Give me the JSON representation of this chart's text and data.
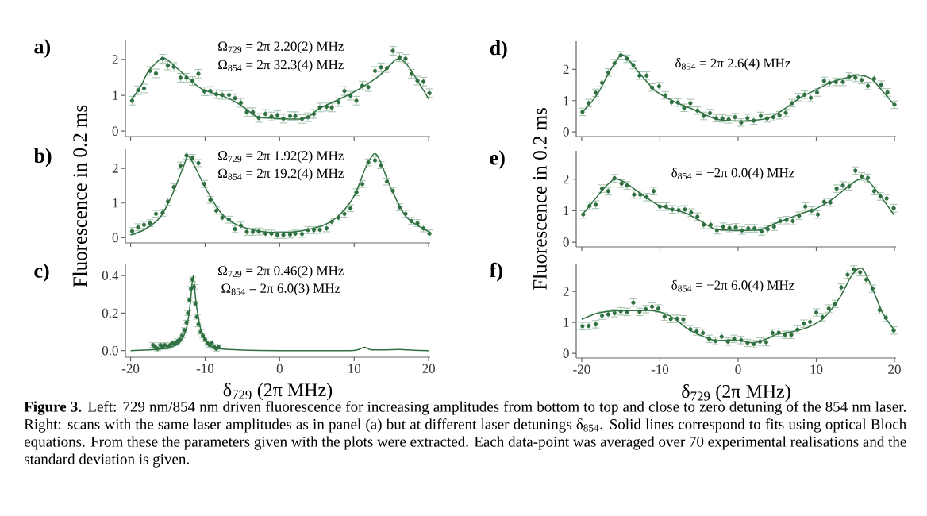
{
  "chart_data": [
    {
      "type": "scatter",
      "title": "a)",
      "annotations": [
        "Ω$_{729}$ = 2π 2.20(2) MHz",
        "Ω$_{854}$ = 2π 32.3(4) MHz"
      ],
      "xlim": [
        -20.7,
        20.2
      ],
      "xticks": [
        -20,
        -10,
        0,
        10,
        20
      ],
      "ylim": [
        -0.15,
        2.55
      ],
      "yticks": [
        0,
        1,
        2
      ],
      "tick_labels": "y",
      "marker": "circle",
      "series": [
        {
          "type": "scatter",
          "color": "#2e7040",
          "x": [
            -19.8,
            -19,
            -18.2,
            -17.4,
            -16.6,
            -15.7,
            -15,
            -14.2,
            -13.3,
            -12.5,
            -11.7,
            -10.9,
            -10.1,
            -9.3,
            -8.5,
            -7.7,
            -6.8,
            -6,
            -5.2,
            -4.4,
            -3.6,
            -2.8,
            -1.9,
            -1.1,
            -0.3,
            0.5,
            1.4,
            2.1,
            3,
            3.8,
            4.6,
            5.4,
            6.3,
            7,
            7.9,
            8.7,
            9.5,
            10.3,
            11.1,
            11.9,
            12.8,
            13.6,
            14.4,
            15.2,
            16.1,
            16.9,
            17.7,
            18.5,
            19.3,
            20.1
          ],
          "values": [
            0.85,
            1.14,
            1.19,
            1.68,
            1.61,
            2.02,
            1.83,
            1.79,
            1.49,
            1.49,
            1.4,
            1.6,
            1.11,
            1.12,
            1.03,
            1.01,
            1.01,
            0.92,
            0.79,
            0.53,
            0.53,
            0.37,
            0.48,
            0.41,
            0.45,
            0.35,
            0.42,
            0.42,
            0.34,
            0.39,
            0.48,
            0.66,
            0.68,
            0.66,
            0.81,
            1.12,
            0.99,
            0.85,
            1.27,
            1.23,
            1.68,
            1.78,
            1.76,
            2.24,
            2.06,
            2.02,
            1.6,
            1.41,
            1.38,
            1.06
          ],
          "errors": [
            0.12,
            0.12,
            0.12,
            0.12,
            0.12,
            0.12,
            0.12,
            0.12,
            0.12,
            0.12,
            0.12,
            0.12,
            0.12,
            0.12,
            0.12,
            0.12,
            0.12,
            0.12,
            0.12,
            0.12,
            0.12,
            0.12,
            0.12,
            0.12,
            0.12,
            0.12,
            0.12,
            0.12,
            0.12,
            0.12,
            0.12,
            0.12,
            0.12,
            0.12,
            0.12,
            0.12,
            0.12,
            0.12,
            0.12,
            0.12,
            0.12,
            0.12,
            0.12,
            0.12,
            0.12,
            0.12,
            0.12,
            0.12,
            0.12,
            0.12
          ]
        },
        {
          "type": "line",
          "marker": "none",
          "color": "#2e7040",
          "x": [
            -20,
            -19.3,
            -18.5,
            -17.6,
            -15.7,
            -14.3,
            -12.5,
            -10.4,
            -7.5,
            -5.4,
            -3.2,
            -1.8,
            3.2,
            5.4,
            9.6,
            13.2,
            15.4,
            16.3,
            17.5,
            20
          ],
          "values": [
            0.83,
            1.05,
            1.3,
            1.67,
            2.04,
            1.85,
            1.52,
            1.17,
            0.97,
            0.75,
            0.42,
            0.37,
            0.35,
            0.64,
            1.05,
            1.52,
            1.96,
            2.0,
            1.74,
            0.9
          ]
        }
      ]
    },
    {
      "type": "scatter",
      "title": "b)",
      "ylabel": "Fluorescence in 0.2 ms",
      "annotations": [
        "Ω$_{729}$ = 2π 1.92(2) MHz",
        "Ω$_{854}$ = 2π 19.2(4) MHz"
      ],
      "xlim": [
        -20.7,
        20.2
      ],
      "xticks": [
        -20,
        -10,
        0,
        10,
        20
      ],
      "ylim": [
        -0.15,
        2.55
      ],
      "yticks": [
        0,
        1,
        2
      ],
      "tick_labels": "y",
      "marker": "circle",
      "series": [
        {
          "type": "scatter",
          "color": "#2e7040",
          "x": [
            -19.8,
            -19,
            -18.2,
            -17.4,
            -16.6,
            -15.7,
            -15,
            -14.2,
            -13.3,
            -12.5,
            -11.7,
            -10.9,
            -10.1,
            -9.3,
            -8.5,
            -7.7,
            -6.8,
            -6,
            -5.2,
            -4.4,
            -3.6,
            -2.8,
            -1.9,
            -1.1,
            -0.3,
            0.5,
            1.4,
            2.1,
            3,
            3.8,
            4.6,
            5.4,
            6.3,
            7,
            7.9,
            8.7,
            9.5,
            10.3,
            11.1,
            11.9,
            12.8,
            13.6,
            14.4,
            15.2,
            16.1,
            16.9,
            17.7,
            18.5,
            19.3,
            20.1
          ],
          "values": [
            0.19,
            0.3,
            0.37,
            0.42,
            0.69,
            0.72,
            1.04,
            1.46,
            2.08,
            2.37,
            2.3,
            2.15,
            1.55,
            1.09,
            0.78,
            0.58,
            0.52,
            0.25,
            0.35,
            0.17,
            0.17,
            0.18,
            0.12,
            0.12,
            0.08,
            0.08,
            0.09,
            0.12,
            0.11,
            0.22,
            0.22,
            0.23,
            0.27,
            0.46,
            0.58,
            0.69,
            0.85,
            1.31,
            1.55,
            2.17,
            2.23,
            2.09,
            1.62,
            1.35,
            0.88,
            0.69,
            0.48,
            0.42,
            0.27,
            0.12
          ],
          "errors": [
            0.1,
            0.1,
            0.1,
            0.1,
            0.1,
            0.1,
            0.1,
            0.1,
            0.1,
            0.1,
            0.1,
            0.1,
            0.1,
            0.1,
            0.1,
            0.1,
            0.1,
            0.1,
            0.1,
            0.1,
            0.1,
            0.1,
            0.1,
            0.1,
            0.1,
            0.1,
            0.1,
            0.1,
            0.1,
            0.1,
            0.1,
            0.1,
            0.1,
            0.1,
            0.1,
            0.1,
            0.1,
            0.1,
            0.1,
            0.1,
            0.1,
            0.1,
            0.1,
            0.1,
            0.1,
            0.1,
            0.1,
            0.1,
            0.1,
            0.1
          ]
        },
        {
          "type": "line",
          "marker": "none",
          "color": "#2e7040",
          "x": [
            -20,
            -18,
            -16,
            -14.5,
            -13,
            -12.3,
            -11.5,
            -10,
            -8,
            -6,
            -3,
            0,
            3,
            6,
            8,
            10,
            11.5,
            12.7,
            13.5,
            15,
            17,
            20
          ],
          "values": [
            0.08,
            0.25,
            0.6,
            1.2,
            2.0,
            2.35,
            2.1,
            1.45,
            0.75,
            0.4,
            0.2,
            0.15,
            0.2,
            0.37,
            0.65,
            1.2,
            2.0,
            2.42,
            2.2,
            1.4,
            0.6,
            0.18
          ]
        }
      ]
    },
    {
      "type": "scatter",
      "title": "c)",
      "xlabel": "δ$_{729}$ (2π MHz)",
      "annotations": [
        "Ω$_{729}$ = 2π 0.46(2) MHz",
        "Ω$_{854}$ = 2π 6.0(3) MHz"
      ],
      "xlim": [
        -20.7,
        20.2
      ],
      "xticks": [
        -20,
        -10,
        0,
        10,
        20
      ],
      "ylim": [
        -0.035,
        0.46
      ],
      "yticks": [
        {
          "value": 0,
          "label": "0.0"
        },
        {
          "value": 0.2,
          "label": "0.2"
        },
        {
          "value": 0.4,
          "label": "0.4"
        }
      ],
      "marker": "circle",
      "series": [
        {
          "type": "scatter",
          "color": "#2e7040",
          "x": [
            -17,
            -16.7,
            -16.4,
            -16,
            -15.7,
            -15.4,
            -15,
            -14.7,
            -14.4,
            -14,
            -13.7,
            -13.4,
            -13.1,
            -12.8,
            -12.5,
            -12.3,
            -12.1,
            -11.9,
            -11.7,
            -11.5,
            -11.3,
            -11.1,
            -10.9,
            -10.6,
            -10.3,
            -10,
            -9.7,
            -9.4,
            -9.1,
            -8.8,
            -8.5,
            -8.2
          ],
          "values": [
            0.03,
            0.02,
            0.01,
            0.03,
            0.02,
            0.03,
            0.02,
            0.03,
            0.04,
            0.04,
            0.05,
            0.06,
            0.08,
            0.11,
            0.15,
            0.2,
            0.27,
            0.33,
            0.38,
            0.34,
            0.25,
            0.18,
            0.14,
            0.1,
            0.08,
            0.06,
            0.04,
            0.03,
            0.04,
            0.02,
            0.01,
            0.02
          ],
          "errors": [
            0.012,
            0.012,
            0.012,
            0.012,
            0.012,
            0.012,
            0.012,
            0.012,
            0.012,
            0.012,
            0.012,
            0.012,
            0.012,
            0.012,
            0.012,
            0.012,
            0.012,
            0.012,
            0.012,
            0.012,
            0.012,
            0.012,
            0.012,
            0.012,
            0.012,
            0.012,
            0.012,
            0.012,
            0.012,
            0.012,
            0.012,
            0.012
          ]
        },
        {
          "type": "line",
          "marker": "none",
          "color": "#2e7040",
          "x": [
            -20,
            -17,
            -15,
            -13.5,
            -12.5,
            -12,
            -11.6,
            -11.2,
            -10.5,
            -9.5,
            -8,
            -5,
            0,
            9,
            10.5,
            11.4,
            12.2,
            14,
            16,
            18,
            20
          ],
          "values": [
            0.0,
            0.005,
            0.015,
            0.04,
            0.12,
            0.25,
            0.4,
            0.25,
            0.1,
            0.03,
            0.01,
            0.003,
            0.0,
            0.0,
            0.005,
            0.018,
            0.005,
            0.004,
            0.006,
            0.002,
            0.0
          ]
        }
      ]
    },
    {
      "type": "scatter",
      "title": "d)",
      "annotations": [
        "δ$_{854}$ = 2π 2.6(4) MHz"
      ],
      "xlim": [
        -20.7,
        20.2
      ],
      "xticks": [
        -20,
        -10,
        0,
        10,
        20
      ],
      "ylim": [
        -0.15,
        2.9
      ],
      "yticks": [
        0,
        1,
        2
      ],
      "tick_labels": "y",
      "marker": "circle",
      "series": [
        {
          "type": "scatter",
          "color": "#2e7040",
          "x": [
            -19.9,
            -19.1,
            -18.2,
            -17.4,
            -16.6,
            -15.8,
            -15,
            -14.2,
            -13.4,
            -12.6,
            -11.7,
            -11,
            -10.1,
            -9.3,
            -8.5,
            -7.7,
            -6.9,
            -6.1,
            -5.2,
            -4.4,
            -3.6,
            -2.8,
            -2,
            -1.2,
            -0.4,
            0.4,
            1.2,
            2,
            2.9,
            3.7,
            4.5,
            5.3,
            6.1,
            6.9,
            7.7,
            8.5,
            9.3,
            10.1,
            11,
            11.7,
            12.5,
            13.4,
            14.2,
            15,
            15.8,
            16.6,
            17.4,
            18.3,
            19.1,
            20
          ],
          "values": [
            0.64,
            0.92,
            1.25,
            1.57,
            1.9,
            2.2,
            2.45,
            2.34,
            2.14,
            1.8,
            1.8,
            1.42,
            1.46,
            1.17,
            0.95,
            0.94,
            0.77,
            0.92,
            0.68,
            0.51,
            0.6,
            0.44,
            0.43,
            0.4,
            0.47,
            0.3,
            0.44,
            0.36,
            0.51,
            0.43,
            0.47,
            0.53,
            0.61,
            0.92,
            1.11,
            1.19,
            1.09,
            1.26,
            1.63,
            1.57,
            1.6,
            1.6,
            1.77,
            1.73,
            1.66,
            1.47,
            1.7,
            1.51,
            1.26,
            0.87
          ],
          "errors": [
            0.12,
            0.12,
            0.12,
            0.12,
            0.12,
            0.12,
            0.12,
            0.12,
            0.12,
            0.12,
            0.12,
            0.12,
            0.12,
            0.12,
            0.12,
            0.12,
            0.12,
            0.12,
            0.12,
            0.12,
            0.12,
            0.12,
            0.12,
            0.12,
            0.12,
            0.12,
            0.12,
            0.12,
            0.12,
            0.12,
            0.12,
            0.12,
            0.12,
            0.12,
            0.12,
            0.12,
            0.12,
            0.12,
            0.12,
            0.12,
            0.12,
            0.12,
            0.12,
            0.12,
            0.12,
            0.12,
            0.12,
            0.12,
            0.12,
            0.12
          ]
        },
        {
          "type": "line",
          "marker": "none",
          "color": "#2e7040",
          "x": [
            -20,
            -18,
            -16.5,
            -15,
            -14,
            -12.5,
            -10.5,
            -8,
            -5,
            -3,
            -1,
            2,
            4,
            6,
            8,
            10,
            12,
            14.5,
            15.5,
            17,
            18.5,
            20
          ],
          "values": [
            0.6,
            1.2,
            1.9,
            2.45,
            2.3,
            1.85,
            1.3,
            0.95,
            0.65,
            0.42,
            0.35,
            0.37,
            0.45,
            0.75,
            1.1,
            1.35,
            1.6,
            1.77,
            1.82,
            1.7,
            1.3,
            0.85
          ]
        }
      ]
    },
    {
      "type": "scatter",
      "title": "e)",
      "ylabel": "Fluorescence in 0.2 ms",
      "annotations": [
        "δ$_{854}$ = −2π 0.0(4) MHz"
      ],
      "xlim": [
        -20.7,
        20.2
      ],
      "xticks": [
        -20,
        -10,
        0,
        10,
        20
      ],
      "ylim": [
        -0.15,
        2.9
      ],
      "yticks": [
        0,
        1,
        2
      ],
      "tick_labels": "y",
      "marker": "circle",
      "series": [
        {
          "type": "scatter",
          "color": "#2e7040",
          "x": [
            -19.8,
            -19,
            -18.2,
            -17.4,
            -16.6,
            -15.8,
            -14.9,
            -14.2,
            -13.3,
            -12.5,
            -11.7,
            -10.8,
            -10,
            -9.2,
            -8.4,
            -7.6,
            -6.8,
            -6,
            -5.2,
            -4.4,
            -3.5,
            -2.7,
            -1.9,
            -1.1,
            -0.3,
            0.5,
            1.3,
            2.1,
            3,
            3.8,
            4.6,
            5.4,
            6.2,
            7,
            7.8,
            8.6,
            9.4,
            10.2,
            11,
            11.8,
            12.6,
            13.4,
            14.2,
            15,
            15.8,
            16.6,
            17.4,
            18.2,
            19,
            19.9
          ],
          "values": [
            0.88,
            1.15,
            1.19,
            1.7,
            1.62,
            2.03,
            1.86,
            1.8,
            1.51,
            1.51,
            1.43,
            1.62,
            1.13,
            1.13,
            1.04,
            1.02,
            1.04,
            0.94,
            0.81,
            0.55,
            0.55,
            0.38,
            0.49,
            0.45,
            0.47,
            0.37,
            0.44,
            0.44,
            0.34,
            0.41,
            0.49,
            0.67,
            0.7,
            0.67,
            0.84,
            1.13,
            1.0,
            0.88,
            1.28,
            1.26,
            1.7,
            1.8,
            1.77,
            2.27,
            2.09,
            2.04,
            1.62,
            1.45,
            1.39,
            1.08
          ],
          "errors": [
            0.12,
            0.12,
            0.12,
            0.12,
            0.12,
            0.12,
            0.12,
            0.12,
            0.12,
            0.12,
            0.12,
            0.12,
            0.12,
            0.12,
            0.12,
            0.12,
            0.12,
            0.12,
            0.12,
            0.12,
            0.12,
            0.12,
            0.12,
            0.12,
            0.12,
            0.12,
            0.12,
            0.12,
            0.12,
            0.12,
            0.12,
            0.12,
            0.12,
            0.12,
            0.12,
            0.12,
            0.12,
            0.12,
            0.12,
            0.12,
            0.12,
            0.12,
            0.12,
            0.12,
            0.12,
            0.12,
            0.12,
            0.12,
            0.12,
            0.12
          ]
        },
        {
          "type": "line",
          "marker": "none",
          "color": "#2e7040",
          "x": [
            -20,
            -18.5,
            -17,
            -15.8,
            -14.5,
            -12.5,
            -10,
            -7,
            -5,
            -3,
            -1,
            2,
            3,
            5,
            8,
            10,
            12,
            14,
            15.3,
            16.3,
            17.5,
            20
          ],
          "values": [
            0.85,
            1.3,
            1.75,
            2.0,
            1.9,
            1.55,
            1.15,
            0.95,
            0.7,
            0.42,
            0.38,
            0.38,
            0.4,
            0.62,
            0.9,
            1.07,
            1.35,
            1.75,
            1.98,
            2.0,
            1.7,
            0.85
          ]
        }
      ]
    },
    {
      "type": "scatter",
      "title": "f)",
      "xlabel": "δ$_{729}$ (2π MHz)",
      "annotations": [
        "δ$_{854}$ = −2π 6.0(4) MHz"
      ],
      "xlim": [
        -20.7,
        20.2
      ],
      "xticks": [
        -20,
        -10,
        0,
        10,
        20
      ],
      "ylim": [
        -0.15,
        2.9
      ],
      "yticks": [
        0,
        1,
        2
      ],
      "marker": "circle",
      "series": [
        {
          "type": "scatter",
          "color": "#2e7040",
          "x": [
            -19.9,
            -19.1,
            -18.2,
            -17.4,
            -16.6,
            -15.8,
            -15,
            -14.2,
            -13.4,
            -12.6,
            -11.8,
            -11,
            -10.2,
            -9.4,
            -8.6,
            -7.8,
            -7,
            -6.1,
            -5.3,
            -4.5,
            -3.7,
            -2.9,
            -2.1,
            -1.3,
            -0.5,
            0.4,
            1.2,
            2,
            2.8,
            3.6,
            4.4,
            5.2,
            6,
            6.8,
            7.6,
            8.4,
            9.2,
            10,
            10.8,
            11.6,
            12.4,
            13.2,
            14,
            14.8,
            15.6,
            16.4,
            17.2,
            18.1,
            18.9,
            19.9
          ],
          "values": [
            0.88,
            0.89,
            0.94,
            1.22,
            1.26,
            1.3,
            1.36,
            1.34,
            1.64,
            1.34,
            1.43,
            1.51,
            1.45,
            1.19,
            1.11,
            1.12,
            1.1,
            0.78,
            0.71,
            0.66,
            0.47,
            0.4,
            0.54,
            0.38,
            0.47,
            0.43,
            0.34,
            0.3,
            0.38,
            0.36,
            0.66,
            0.67,
            0.6,
            0.6,
            0.77,
            0.96,
            1.02,
            1.32,
            1.17,
            1.45,
            1.6,
            2.13,
            2.54,
            2.71,
            2.62,
            2.38,
            2.09,
            1.4,
            1.15,
            0.74
          ],
          "errors": [
            0.12,
            0.12,
            0.12,
            0.12,
            0.12,
            0.12,
            0.12,
            0.12,
            0.12,
            0.12,
            0.12,
            0.12,
            0.12,
            0.12,
            0.12,
            0.12,
            0.12,
            0.12,
            0.12,
            0.12,
            0.12,
            0.12,
            0.12,
            0.12,
            0.12,
            0.12,
            0.12,
            0.12,
            0.12,
            0.12,
            0.12,
            0.12,
            0.12,
            0.12,
            0.12,
            0.12,
            0.12,
            0.12,
            0.12,
            0.12,
            0.12,
            0.12,
            0.12,
            0.12,
            0.12,
            0.12,
            0.12,
            0.12,
            0.12,
            0.12
          ]
        },
        {
          "type": "line",
          "marker": "none",
          "color": "#2e7040",
          "x": [
            -20,
            -18,
            -16,
            -13,
            -11,
            -9.5,
            -8,
            -6.5,
            -4.5,
            -3,
            -1,
            1,
            2,
            3.5,
            5,
            7,
            9,
            11,
            13,
            14.5,
            15.8,
            17,
            18.5,
            20
          ],
          "values": [
            1.1,
            1.3,
            1.37,
            1.38,
            1.38,
            1.3,
            1.1,
            0.8,
            0.55,
            0.42,
            0.43,
            0.38,
            0.34,
            0.45,
            0.62,
            0.7,
            0.85,
            1.15,
            1.8,
            2.5,
            2.75,
            2.2,
            1.3,
            0.75
          ]
        }
      ]
    },
    {
      "type": "other",
      "annotations": [
        "**Figure 3.** Left: 729 nm/854 nm driven fluorescence for increasing amplitudes from bottom to top and close to zero detuning of the 854 nm laser. Right: scans with the same laser amplitudes as in panel (a) but at different laser detunings δ$_{854}$. Solid lines correspond to fits using optical Bloch equations. From these the parameters given with the plots were extracted. Each data-point was averaged over 70 experimental realisations and the standard deviation is given."
      ]
    }
  ]
}
